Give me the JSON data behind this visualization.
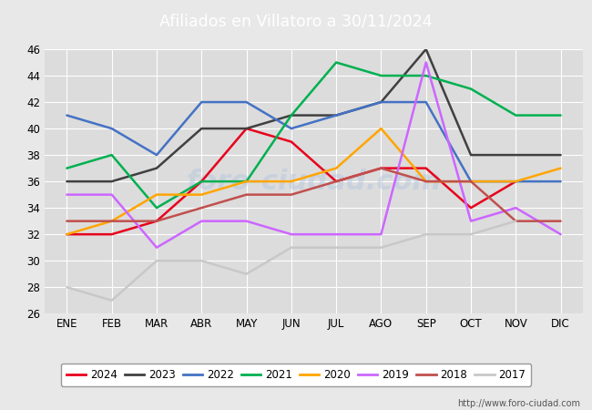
{
  "title": "Afiliados en Villatoro a 30/11/2024",
  "title_color": "#ffffff",
  "title_bg": "#5b8dd9",
  "ylim": [
    26,
    46
  ],
  "yticks": [
    26,
    28,
    30,
    32,
    34,
    36,
    38,
    40,
    42,
    44,
    46
  ],
  "months": [
    "ENE",
    "FEB",
    "MAR",
    "ABR",
    "MAY",
    "JUN",
    "JUL",
    "AGO",
    "SEP",
    "OCT",
    "NOV",
    "DIC"
  ],
  "url": "http://www.foro-ciudad.com",
  "series": {
    "2024": {
      "color": "#e8001c",
      "data": [
        32,
        32,
        33,
        36,
        40,
        39,
        36,
        37,
        37,
        34,
        36,
        null
      ]
    },
    "2023": {
      "color": "#404040",
      "data": [
        36,
        36,
        37,
        40,
        40,
        41,
        41,
        42,
        46,
        38,
        38,
        38
      ]
    },
    "2022": {
      "color": "#4472c4",
      "data": [
        41,
        40,
        38,
        42,
        42,
        40,
        41,
        42,
        42,
        36,
        36,
        36
      ]
    },
    "2021": {
      "color": "#00b050",
      "data": [
        37,
        38,
        34,
        36,
        36,
        41,
        45,
        44,
        44,
        43,
        41,
        41
      ]
    },
    "2020": {
      "color": "#ffa500",
      "data": [
        32,
        33,
        35,
        35,
        36,
        36,
        37,
        40,
        36,
        36,
        36,
        37
      ]
    },
    "2019": {
      "color": "#cc66ff",
      "data": [
        35,
        35,
        31,
        33,
        33,
        32,
        32,
        32,
        45,
        33,
        34,
        32
      ]
    },
    "2018": {
      "color": "#c0504d",
      "data": [
        33,
        33,
        33,
        34,
        35,
        35,
        36,
        37,
        36,
        36,
        33,
        33
      ]
    },
    "2017": {
      "color": "#c8c8c8",
      "data": [
        28,
        27,
        30,
        30,
        29,
        31,
        31,
        31,
        32,
        32,
        33,
        null
      ]
    }
  },
  "legend_order": [
    "2024",
    "2023",
    "2022",
    "2021",
    "2020",
    "2019",
    "2018",
    "2017"
  ],
  "fig_bg": "#e8e8e8",
  "plot_bg": "#dcdcdc",
  "grid_color": "#ffffff",
  "watermark_color": "#b0c4de",
  "watermark_text": "foro-ciudad.com"
}
